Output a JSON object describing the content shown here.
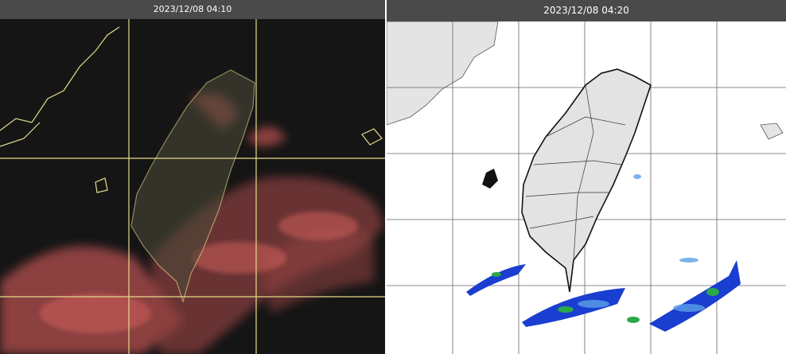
{
  "panels": [
    {
      "timestamp": "2023/12/08 04:10"
    },
    {
      "timestamp": "2023/12/08 04:20"
    }
  ]
}
